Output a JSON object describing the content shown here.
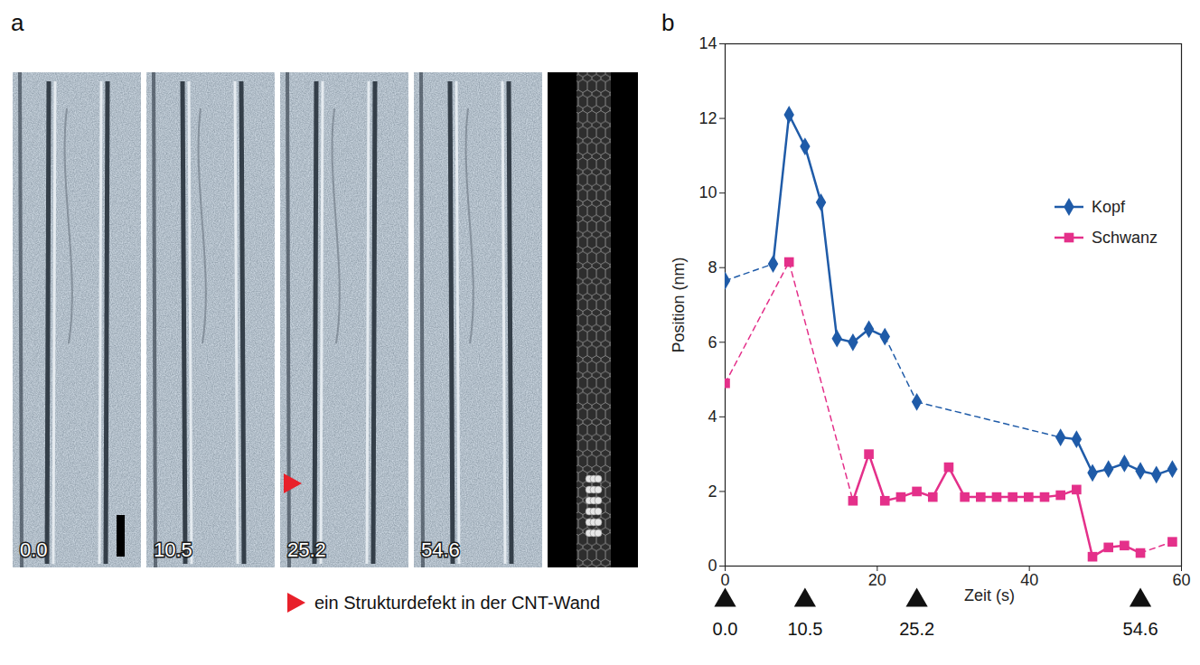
{
  "panel_a": {
    "letter": "a",
    "frames": [
      "0.0",
      "10.5",
      "25.2",
      "54.6"
    ],
    "legend_text": "ein Strukturdefekt in der CNT-Wand"
  },
  "chart_data": {
    "letter": "b",
    "type": "line",
    "xlabel": "Zeit (s)",
    "ylabel": "Position (nm)",
    "xlim": [
      0,
      60
    ],
    "xticks": [
      0,
      20,
      40,
      60
    ],
    "ylim": [
      0,
      14
    ],
    "yticks": [
      0,
      2,
      4,
      6,
      8,
      10,
      12,
      14
    ],
    "legend": "right",
    "frame_marks": [
      {
        "value": 0,
        "label": "0.0"
      },
      {
        "value": 10.5,
        "label": "10.5"
      },
      {
        "value": 25.2,
        "label": "25.2"
      },
      {
        "value": 54.6,
        "label": "54.6"
      }
    ],
    "series": [
      {
        "name": "Kopf",
        "color": "#1f5ba8",
        "marker": "diamond",
        "x": [
          0,
          6.3,
          8.4,
          10.5,
          12.6,
          14.7,
          16.8,
          18.9,
          21,
          25.2,
          44.1,
          46.2,
          48.3,
          50.4,
          52.5,
          54.6,
          56.7,
          58.8
        ],
        "values": [
          7.65,
          8.1,
          12.1,
          11.25,
          9.75,
          6.1,
          6.0,
          6.35,
          6.15,
          4.4,
          3.45,
          3.4,
          2.5,
          2.6,
          2.75,
          2.55,
          2.45,
          2.6
        ]
      },
      {
        "name": "Schwanz",
        "color": "#e4308a",
        "marker": "square",
        "x": [
          0,
          8.4,
          16.8,
          18.9,
          21,
          23.1,
          25.2,
          27.3,
          29.4,
          31.5,
          33.6,
          35.7,
          37.8,
          39.9,
          42,
          44.1,
          46.2,
          48.3,
          50.4,
          52.5,
          54.6,
          58.8
        ],
        "values": [
          4.9,
          8.15,
          1.75,
          3.0,
          1.75,
          1.85,
          2.0,
          1.85,
          2.65,
          1.85,
          1.85,
          1.85,
          1.85,
          1.85,
          1.85,
          1.9,
          2.05,
          0.25,
          0.5,
          0.55,
          0.35,
          0.65
        ]
      }
    ]
  }
}
